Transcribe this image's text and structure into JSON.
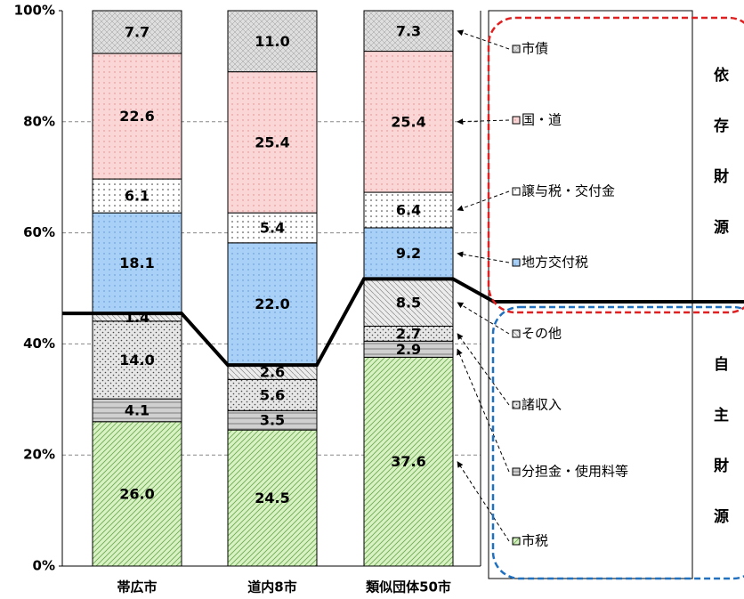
{
  "chart_data": {
    "type": "stacked_bar",
    "categories": [
      "帯広市",
      "道内8市",
      "類似団体50市"
    ],
    "ylim": [
      0,
      100
    ],
    "yticks": [
      {
        "value": 0,
        "label": "0%"
      },
      {
        "value": 20,
        "label": "20%"
      },
      {
        "value": 40,
        "label": "40%"
      },
      {
        "value": 60,
        "label": "60%"
      },
      {
        "value": 80,
        "label": "80%"
      },
      {
        "value": 100,
        "label": "100%"
      }
    ],
    "grid": true,
    "series": [
      {
        "name": "市税",
        "color": "#d9f2c4",
        "values": [
          26.0,
          24.5,
          37.6
        ],
        "value_labels": [
          "26.0",
          "24.5",
          "37.6"
        ]
      },
      {
        "name": "分担金・使用料等",
        "color": "#d0d0d0",
        "values": [
          4.1,
          3.5,
          2.9
        ],
        "value_labels": [
          "4.1",
          "3.5",
          "2.9"
        ]
      },
      {
        "name": "諸収入",
        "color": "#e6e6e6",
        "values": [
          14.0,
          5.6,
          2.7
        ],
        "value_labels": [
          "14.0",
          "5.6",
          "2.7"
        ]
      },
      {
        "name": "その他",
        "color": "#ececec",
        "values": [
          1.4,
          2.6,
          8.5
        ],
        "value_labels": [
          "1.4",
          "2.6",
          "8.5"
        ]
      },
      {
        "name": "地方交付税",
        "color": "#a9d1f7",
        "values": [
          18.1,
          22.0,
          9.2
        ],
        "value_labels": [
          "18.1",
          "22.0",
          "9.2"
        ]
      },
      {
        "name": "譲与税・交付金",
        "color": "#ffffff",
        "values": [
          6.1,
          5.4,
          6.4
        ],
        "value_labels": [
          "6.1",
          "5.4",
          "6.4"
        ]
      },
      {
        "name": "国・道",
        "color": "#fbd6d6",
        "values": [
          22.6,
          25.4,
          25.4
        ],
        "value_labels": [
          "22.6",
          "25.4",
          "25.4"
        ]
      },
      {
        "name": "市債",
        "color": "#dedede",
        "values": [
          7.7,
          11.0,
          7.3
        ],
        "value_labels": [
          "7.7",
          "11.0",
          "7.3"
        ]
      }
    ],
    "legend_groups": [
      {
        "name": "依存財源",
        "color": "#e02020"
      },
      {
        "name": "自主財源",
        "color": "#2070c0"
      }
    ],
    "group_split": 4
  }
}
